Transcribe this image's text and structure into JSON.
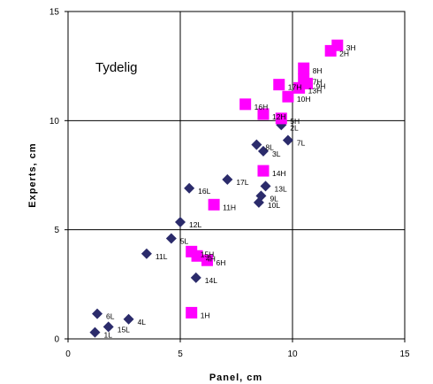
{
  "chart_data": {
    "type": "scatter",
    "xlabel": "Panel, cm",
    "ylabel": "Experts, cm",
    "annotation": "Tydelig",
    "xlim": [
      0,
      15
    ],
    "ylim": [
      0,
      15
    ],
    "xticks": [
      "0",
      "5",
      "10",
      "15"
    ],
    "yticks": [
      "0",
      "5",
      "10",
      "15"
    ],
    "grid": true,
    "series": [
      {
        "marker": "diamond",
        "color": "#2b2b6b",
        "points": [
          {
            "label": "1L",
            "x": 1.2,
            "y": 0.3
          },
          {
            "label": "15L",
            "x": 1.8,
            "y": 0.55
          },
          {
            "label": "4L",
            "x": 2.7,
            "y": 0.9
          },
          {
            "label": "6L",
            "x": 1.3,
            "y": 1.15
          },
          {
            "label": "11L",
            "x": 3.5,
            "y": 3.9
          },
          {
            "label": "5L",
            "x": 4.6,
            "y": 4.6
          },
          {
            "label": "12L",
            "x": 5.0,
            "y": 5.35
          },
          {
            "label": "14L",
            "x": 5.7,
            "y": 2.8
          },
          {
            "label": "16L",
            "x": 5.4,
            "y": 6.9
          },
          {
            "label": "17L",
            "x": 7.1,
            "y": 7.3
          },
          {
            "label": "10L",
            "x": 8.5,
            "y": 6.25
          },
          {
            "label": "9L",
            "x": 8.6,
            "y": 6.55
          },
          {
            "label": "13L",
            "x": 8.8,
            "y": 7.0
          },
          {
            "label": "3L",
            "x": 8.7,
            "y": 8.6
          },
          {
            "label": "8L",
            "x": 8.4,
            "y": 8.9
          },
          {
            "label": "7L",
            "x": 9.8,
            "y": 9.1
          },
          {
            "label": "2L",
            "x": 9.5,
            "y": 9.8
          }
        ]
      },
      {
        "marker": "square",
        "color": "#ff00ff",
        "points": [
          {
            "label": "1H",
            "x": 5.5,
            "y": 1.2
          },
          {
            "label": "15H",
            "x": 5.5,
            "y": 4.0
          },
          {
            "label": "4H",
            "x": 5.75,
            "y": 3.8
          },
          {
            "label": "6H",
            "x": 6.2,
            "y": 3.6
          },
          {
            "label": "11H",
            "x": 6.5,
            "y": 6.15
          },
          {
            "label": "14H",
            "x": 8.7,
            "y": 7.7
          },
          {
            "label": "16H",
            "x": 7.9,
            "y": 10.75
          },
          {
            "label": "12H",
            "x": 8.7,
            "y": 10.3
          },
          {
            "label": "5H",
            "x": 9.5,
            "y": 10.1
          },
          {
            "label": "10H",
            "x": 9.8,
            "y": 11.1
          },
          {
            "label": "17H",
            "x": 9.4,
            "y": 11.65
          },
          {
            "label": "13H",
            "x": 10.3,
            "y": 11.5
          },
          {
            "label": "7H",
            "x": 10.5,
            "y": 11.9
          },
          {
            "label": "9H",
            "x": 10.65,
            "y": 11.7
          },
          {
            "label": "8H",
            "x": 10.5,
            "y": 12.4
          },
          {
            "label": "2H",
            "x": 11.7,
            "y": 13.2
          },
          {
            "label": "3H",
            "x": 12.0,
            "y": 13.45
          }
        ]
      }
    ]
  }
}
